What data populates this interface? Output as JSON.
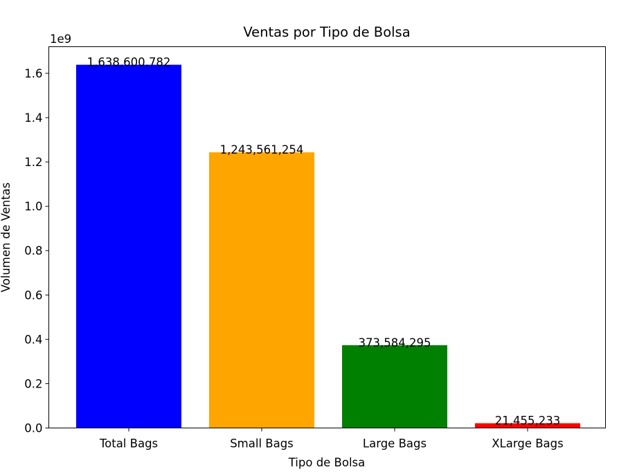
{
  "chart_data": {
    "type": "bar",
    "title": "Ventas por Tipo de Bolsa",
    "xlabel": "Tipo de Bolsa",
    "ylabel": "Volumen de Ventas",
    "y_offset_label": "1e9",
    "categories": [
      "Total Bags",
      "Small Bags",
      "Large Bags",
      "XLarge Bags"
    ],
    "values": [
      1638600782,
      1243561254,
      373584295,
      21455233
    ],
    "value_labels": [
      "1,638,600,782",
      "1,243,561,254",
      "373,584,295",
      "21,455,233"
    ],
    "colors": [
      "#0000ff",
      "#ffa500",
      "#008000",
      "#ff0000"
    ],
    "ylim": [
      0,
      1720000000
    ],
    "yticks": [
      0,
      200000000,
      400000000,
      600000000,
      800000000,
      1000000000,
      1200000000,
      1400000000,
      1600000000
    ],
    "ytick_labels": [
      "0.0",
      "0.2",
      "0.4",
      "0.6",
      "0.8",
      "1.0",
      "1.2",
      "1.4",
      "1.6"
    ],
    "grid": false,
    "legend": "none"
  }
}
